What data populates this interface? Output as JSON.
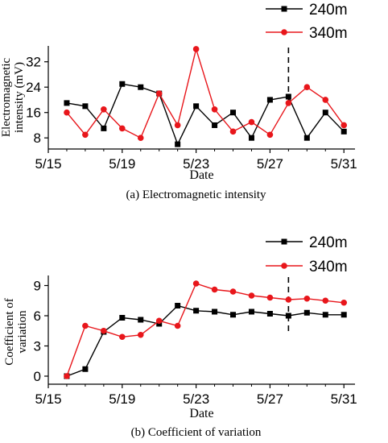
{
  "chart_data": [
    {
      "type": "line",
      "caption": "(a) Electromagnetic intensity",
      "xlabel": "Date",
      "ylabel": "Electromagnetic intensity (mV)",
      "ylabel_lines": [
        "Electromagnetic",
        "intensity (mV)"
      ],
      "x": [
        16,
        17,
        18,
        19,
        20,
        21,
        22,
        23,
        24,
        25,
        26,
        27,
        28,
        29,
        30,
        31
      ],
      "xlim": [
        15,
        31.6
      ],
      "xticks": [
        15,
        19,
        23,
        27,
        31
      ],
      "xtick_labels": [
        "5/15",
        "5/19",
        "5/23",
        "5/27",
        "5/31"
      ],
      "ylim": [
        4.5,
        37
      ],
      "yticks": [
        8,
        16,
        24,
        32
      ],
      "ytick_labels": [
        "8",
        "16",
        "24",
        "32"
      ],
      "series": [
        {
          "name": "240m",
          "color": "#000000",
          "marker": "square",
          "values": [
            19,
            18,
            11,
            25,
            24,
            22,
            6,
            18,
            12,
            16,
            8,
            20,
            21,
            8,
            16,
            10
          ]
        },
        {
          "name": "340m",
          "color": "#e8161b",
          "marker": "circle",
          "values": [
            16,
            9,
            17,
            11,
            8,
            22,
            12,
            36,
            17,
            10,
            13,
            9,
            19,
            24,
            20,
            12
          ]
        }
      ],
      "dashed_marker_x": 28,
      "legend": "top-right"
    },
    {
      "type": "line",
      "caption": "(b) Coefficient of variation",
      "xlabel": "Date",
      "ylabel": "Coefficient of variation",
      "ylabel_lines": [
        "Coefficient of",
        "variation"
      ],
      "x": [
        16,
        17,
        18,
        19,
        20,
        21,
        22,
        23,
        24,
        25,
        26,
        27,
        28,
        29,
        30,
        31
      ],
      "xlim": [
        15,
        31.6
      ],
      "xticks": [
        15,
        19,
        23,
        27,
        31
      ],
      "xtick_labels": [
        "5/15",
        "5/19",
        "5/23",
        "5/27",
        "5/31"
      ],
      "ylim": [
        -0.8,
        10
      ],
      "yticks": [
        0,
        3,
        6,
        9
      ],
      "ytick_labels": [
        "0",
        "3",
        "6",
        "9"
      ],
      "series": [
        {
          "name": "240m",
          "color": "#000000",
          "marker": "square",
          "values": [
            0,
            0.7,
            4.4,
            5.8,
            5.6,
            5.2,
            7.0,
            6.5,
            6.4,
            6.1,
            6.4,
            6.2,
            6.0,
            6.3,
            6.1,
            6.1
          ]
        },
        {
          "name": "340m",
          "color": "#e8161b",
          "marker": "circle",
          "values": [
            0,
            5.0,
            4.5,
            3.9,
            4.1,
            5.5,
            5.0,
            9.2,
            8.6,
            8.4,
            8.0,
            7.8,
            7.6,
            7.7,
            7.5,
            7.3
          ]
        }
      ],
      "dashed_marker_x": 28,
      "legend": "top-right"
    }
  ]
}
